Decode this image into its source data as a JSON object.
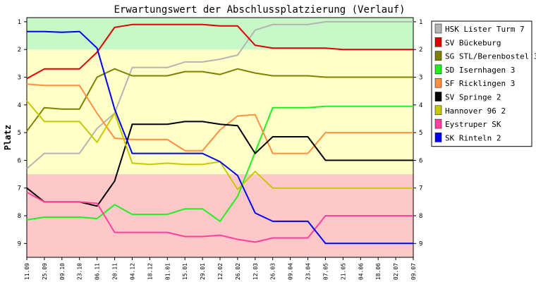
{
  "chart_data": {
    "type": "line",
    "title": "Erwartungswert der Abschlussplatzierung (Verlauf)",
    "ylabel": "Platz",
    "ylim": [
      0.85,
      9.5
    ],
    "y_ticks": [
      1,
      2,
      3,
      4,
      5,
      6,
      7,
      8,
      9
    ],
    "y_inverted": true,
    "x_labels": [
      "11.09",
      "25.09",
      "09.10",
      "23.10",
      "06.11",
      "20.11",
      "04.12",
      "18.12",
      "01.01",
      "15.01",
      "29.01",
      "12.02",
      "26.02",
      "12.03",
      "26.03",
      "09.04",
      "23.04",
      "07.05",
      "21.05",
      "04.06",
      "18.06",
      "02.07",
      "09.07"
    ],
    "background_zones": [
      {
        "from": 0.85,
        "to": 2.0,
        "color": "#c8f7c8"
      },
      {
        "from": 2.0,
        "to": 6.5,
        "color": "#ffffc8"
      },
      {
        "from": 6.5,
        "to": 9.5,
        "color": "#ffc8c8"
      }
    ],
    "legend_position": "right",
    "series": [
      {
        "name": "HSK Lister Turm 7",
        "color": "#b4b4b4",
        "values": [
          6.3,
          5.75,
          5.75,
          5.75,
          4.85,
          4.3,
          2.65,
          2.65,
          2.65,
          2.45,
          2.45,
          2.35,
          2.2,
          1.3,
          1.1,
          1.1,
          1.1,
          1.0,
          1.0,
          1.0,
          1.0,
          1.0,
          1.0
        ]
      },
      {
        "name": "SV Bückeburg",
        "color": "#e00000",
        "values": [
          3.05,
          2.7,
          2.7,
          2.7,
          2.1,
          1.2,
          1.1,
          1.1,
          1.1,
          1.1,
          1.1,
          1.15,
          1.15,
          1.85,
          1.95,
          1.95,
          1.95,
          1.95,
          2.0,
          2.0,
          2.0,
          2.0,
          2.0
        ]
      },
      {
        "name": "SG STL/Berenbostel 3",
        "color": "#808000",
        "values": [
          4.95,
          4.1,
          4.15,
          4.15,
          3.0,
          2.7,
          2.95,
          2.95,
          2.95,
          2.8,
          2.8,
          2.9,
          2.7,
          2.85,
          2.95,
          2.95,
          2.95,
          3.0,
          3.0,
          3.0,
          3.0,
          3.0,
          3.0
        ]
      },
      {
        "name": "SD Isernhagen 3",
        "color": "#20f020",
        "values": [
          8.15,
          8.05,
          8.05,
          8.05,
          8.1,
          7.6,
          7.95,
          7.95,
          7.95,
          7.75,
          7.75,
          8.2,
          7.3,
          5.7,
          4.1,
          4.1,
          4.1,
          4.05,
          4.05,
          4.05,
          4.05,
          4.05,
          4.05
        ]
      },
      {
        "name": "SF Ricklingen 3",
        "color": "#ff9040",
        "values": [
          3.25,
          3.3,
          3.3,
          3.3,
          4.3,
          5.2,
          5.25,
          5.25,
          5.25,
          5.65,
          5.65,
          4.9,
          4.4,
          4.35,
          5.75,
          5.75,
          5.75,
          5.0,
          5.0,
          5.0,
          5.0,
          5.0,
          5.0
        ]
      },
      {
        "name": "SV Springe 2",
        "color": "#000000",
        "values": [
          7.0,
          7.5,
          7.5,
          7.5,
          7.65,
          6.75,
          4.7,
          4.7,
          4.7,
          4.6,
          4.6,
          4.7,
          4.75,
          5.75,
          5.15,
          5.15,
          5.15,
          6.0,
          6.0,
          6.0,
          6.0,
          6.0,
          6.0
        ]
      },
      {
        "name": "Hannover 96 2",
        "color": "#c8c800",
        "values": [
          3.85,
          4.6,
          4.6,
          4.6,
          5.35,
          4.3,
          6.1,
          6.15,
          6.1,
          6.15,
          6.15,
          6.05,
          7.05,
          6.4,
          7.0,
          7.0,
          7.0,
          7.0,
          7.0,
          7.0,
          7.0,
          7.0,
          7.0
        ]
      },
      {
        "name": "Eystruper SK",
        "color": "#ff40a0",
        "values": [
          7.15,
          7.5,
          7.5,
          7.5,
          7.55,
          8.6,
          8.6,
          8.6,
          8.6,
          8.75,
          8.75,
          8.7,
          8.85,
          8.95,
          8.8,
          8.8,
          8.8,
          8.0,
          8.0,
          8.0,
          8.0,
          8.0,
          8.0
        ]
      },
      {
        "name": "SK Rinteln 2",
        "color": "#0000f0",
        "values": [
          1.35,
          1.35,
          1.38,
          1.35,
          1.95,
          4.15,
          5.75,
          5.75,
          5.75,
          5.75,
          5.75,
          6.05,
          6.55,
          7.9,
          8.2,
          8.2,
          8.2,
          9.0,
          9.0,
          9.0,
          9.0,
          9.0,
          9.0
        ]
      }
    ]
  }
}
